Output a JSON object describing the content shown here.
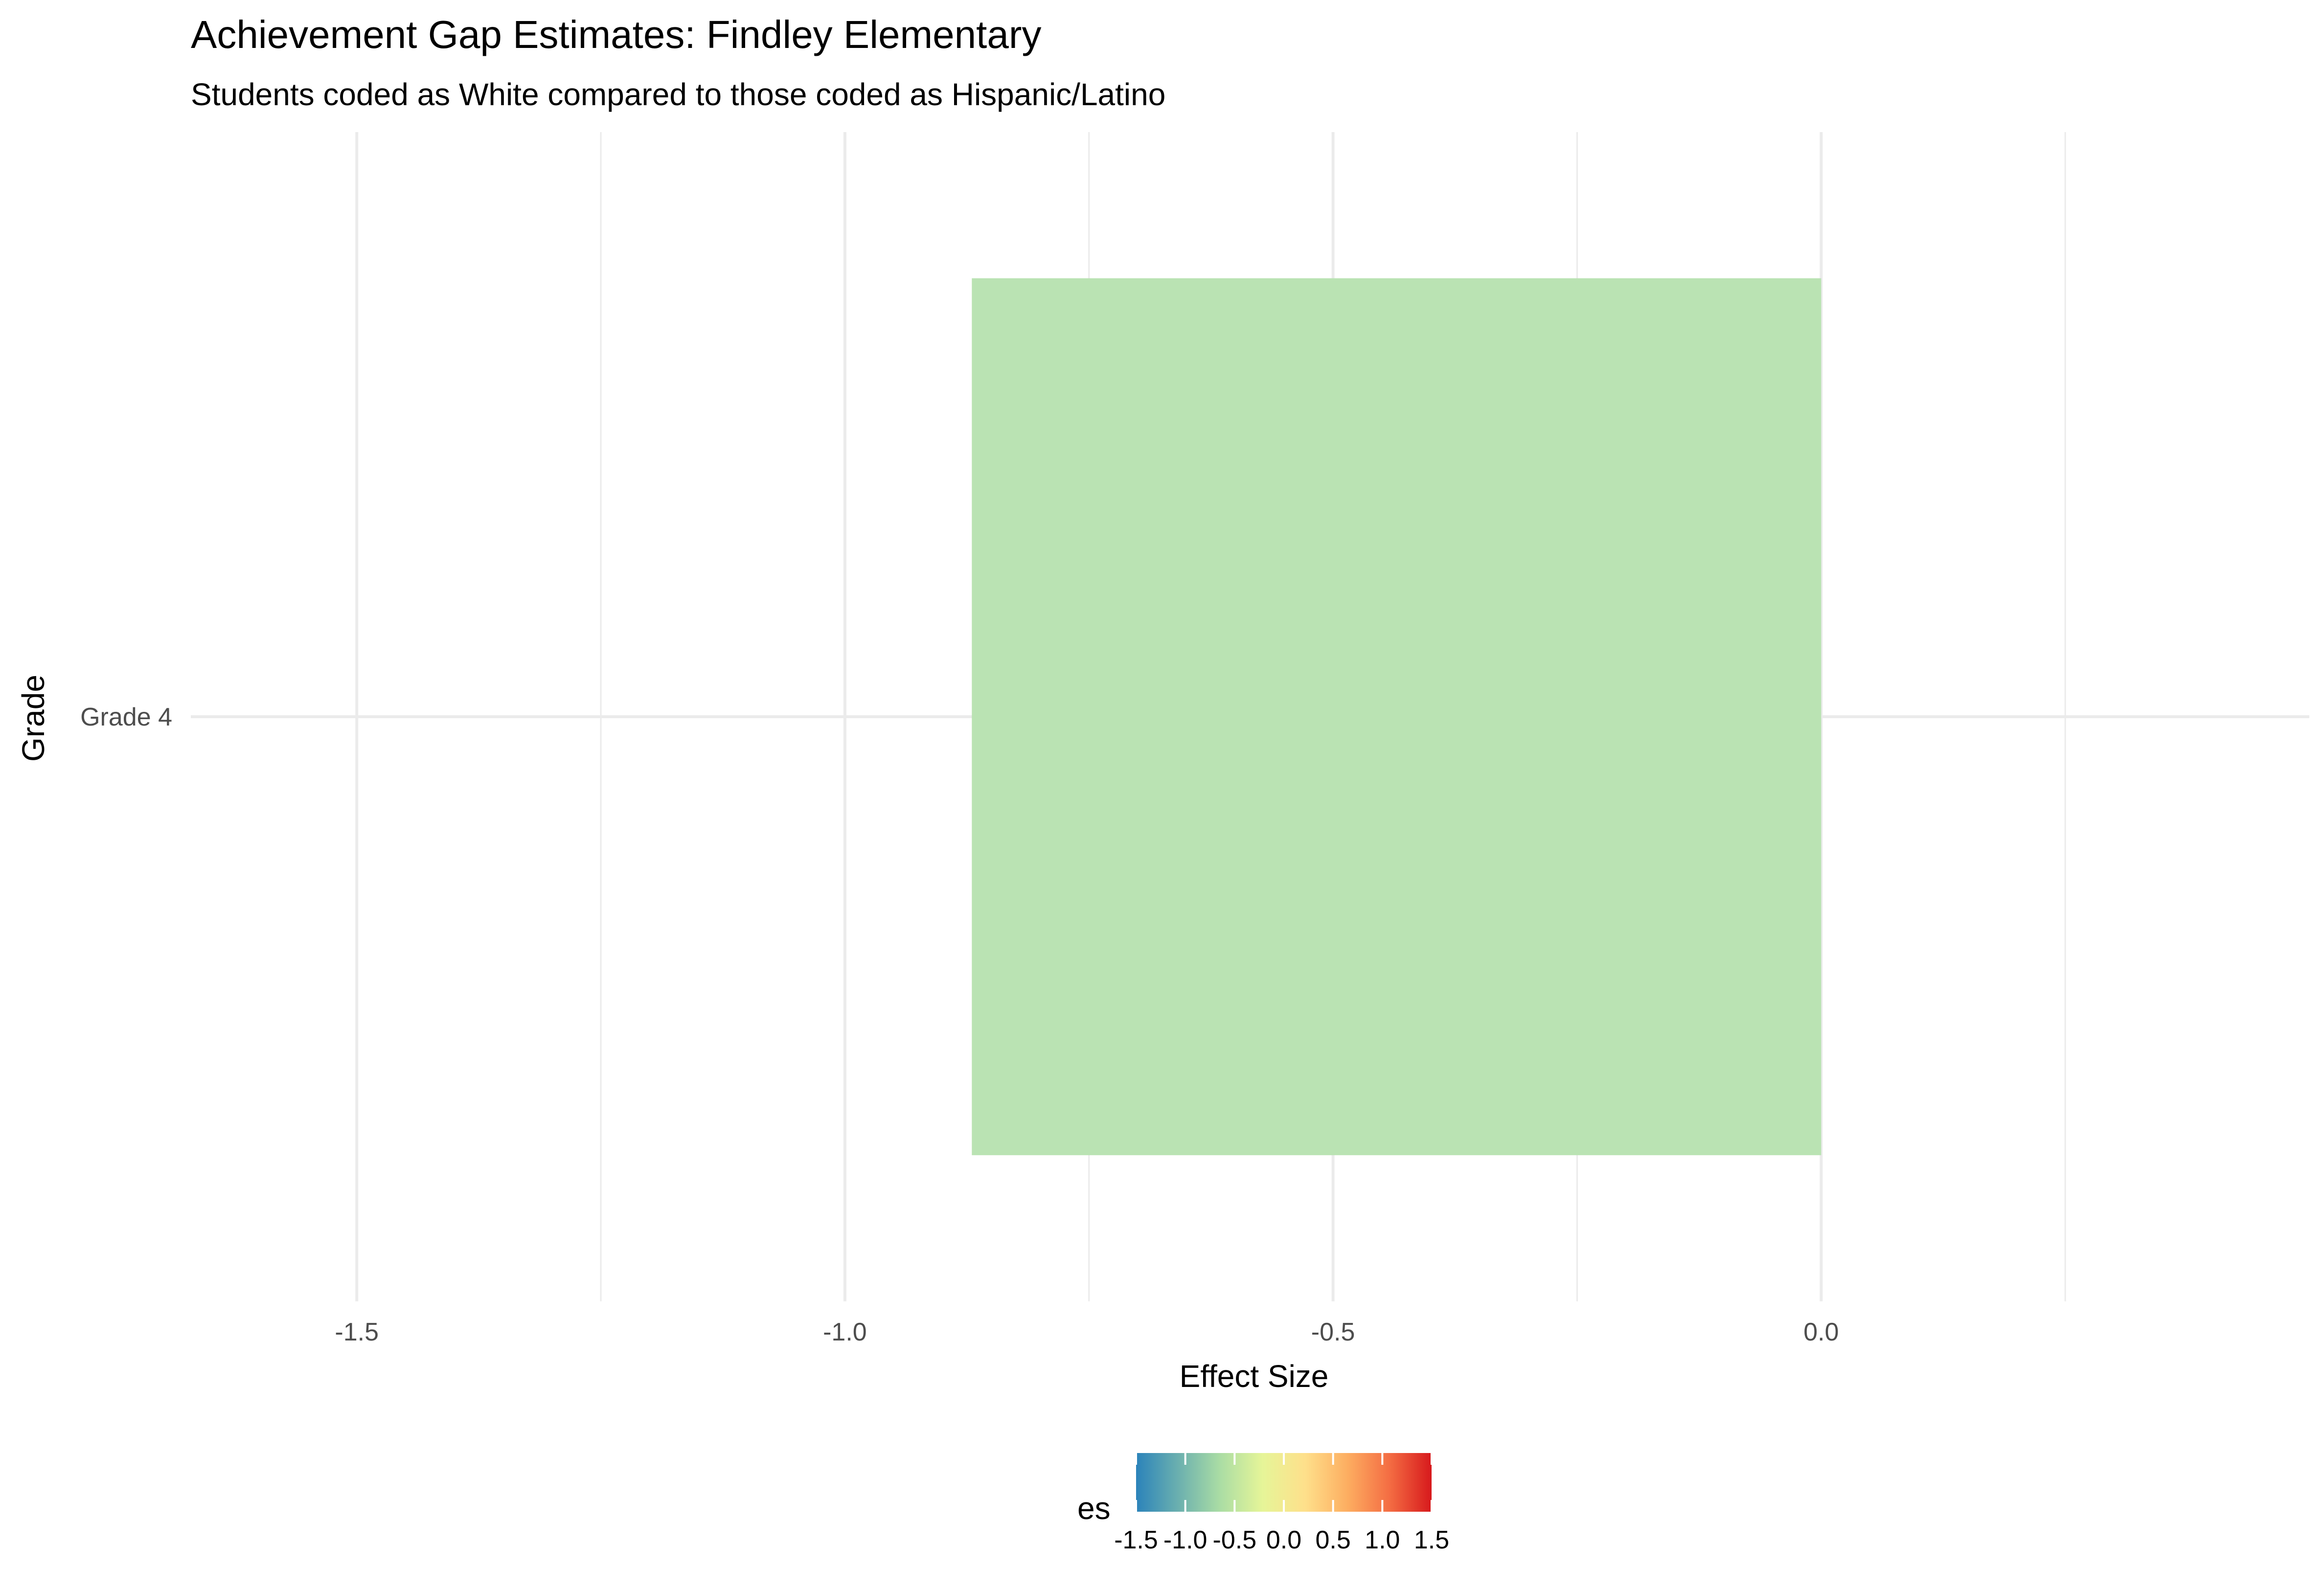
{
  "chart_data": {
    "type": "bar",
    "orientation": "horizontal",
    "title": "Achievement Gap Estimates: Findley Elementary",
    "subtitle": "Students coded as White compared to those coded as Hispanic/Latino",
    "xlabel": "Effect Size",
    "ylabel": "Grade",
    "categories": [
      "Grade 4"
    ],
    "values": [
      -0.87
    ],
    "xlim": [
      -1.67,
      0.5
    ],
    "x_ticks": [
      -1.5,
      -1.0,
      -0.5,
      0.0
    ],
    "x_tick_labels": [
      "-1.5",
      "-1.0",
      "-0.5",
      "0.0"
    ],
    "grid": true,
    "bar_color": "#b8e2b1",
    "legend": {
      "title": "es",
      "position": "bottom",
      "type": "colorbar",
      "range": [
        -1.5,
        1.5
      ],
      "breaks": [
        -1.5,
        -1.0,
        -0.5,
        0.0,
        0.5,
        1.0,
        1.5
      ],
      "labels": [
        "-1.5",
        "-1.0",
        "-0.5",
        "0.0",
        "0.5",
        "1.0",
        "1.5"
      ],
      "colors": [
        "#2b83ba",
        "#6bb0af",
        "#abdda4",
        "#e6f598",
        "#fee08b",
        "#fdae61",
        "#f46d43",
        "#d7191c"
      ]
    }
  }
}
